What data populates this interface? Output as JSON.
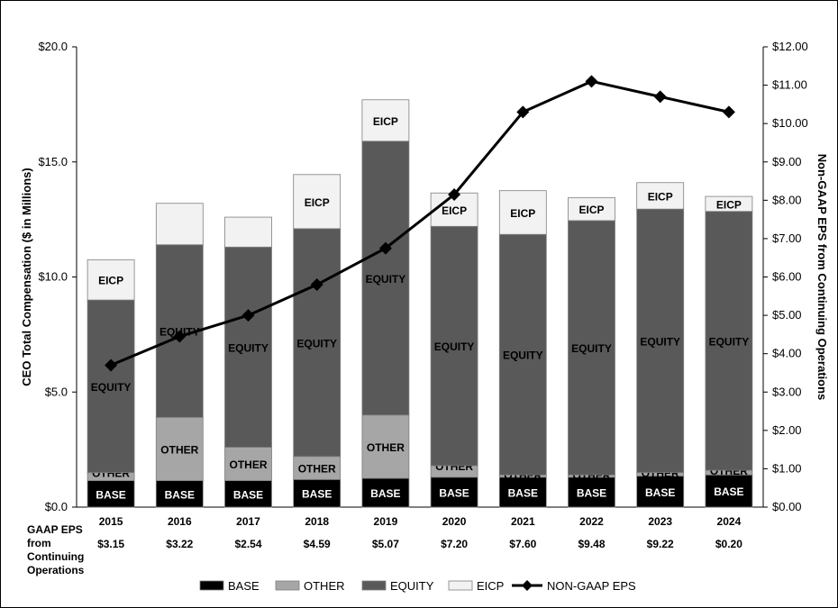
{
  "chart_data": {
    "type": "bar",
    "stacked": true,
    "categories": [
      "2015",
      "2016",
      "2017",
      "2018",
      "2019",
      "2020",
      "2021",
      "2022",
      "2023",
      "2024"
    ],
    "series": [
      {
        "name": "BASE",
        "color": "#000000",
        "values": [
          1.15,
          1.15,
          1.15,
          1.2,
          1.25,
          1.3,
          1.3,
          1.3,
          1.35,
          1.4
        ]
      },
      {
        "name": "OTHER",
        "color": "#a6a6a6",
        "values": [
          0.35,
          2.75,
          1.45,
          1.0,
          2.75,
          0.5,
          0.1,
          0.1,
          0.15,
          0.2
        ]
      },
      {
        "name": "EQUITY",
        "color": "#595959",
        "values": [
          7.5,
          7.5,
          8.7,
          9.9,
          11.9,
          10.4,
          10.45,
          11.05,
          11.45,
          11.25
        ]
      },
      {
        "name": "EICP",
        "color": "#f2f2f2",
        "values": [
          1.75,
          1.8,
          1.3,
          2.35,
          1.8,
          1.45,
          1.9,
          1.0,
          1.15,
          0.65
        ]
      }
    ],
    "line": {
      "name": "NON-GAAP EPS",
      "axis": "right",
      "values": [
        3.7,
        4.45,
        5.0,
        5.8,
        6.75,
        8.15,
        10.3,
        11.1,
        10.7,
        10.3
      ]
    },
    "segment_labels": {
      "BASE": [
        "BASE",
        "BASE",
        "BASE",
        "BASE",
        "BASE",
        "BASE",
        "BASE",
        "BASE",
        "BASE",
        "BASE"
      ],
      "OTHER": [
        "OTHER",
        "OTHER",
        "OTHER",
        "OTHER",
        "OTHER",
        "OTHER",
        "OTHER",
        "OTHER",
        "OTHER",
        "OTHER"
      ],
      "EQUITY": [
        "EQUITY",
        "EQUITY",
        "EQUITY",
        "EQUITY",
        "EQUITY",
        "EQUITY",
        "EQUITY",
        "EQUITY",
        "EQUITY",
        "EQUITY"
      ],
      "EICP": [
        "EICP",
        "",
        "",
        "EICP",
        "EICP",
        "EICP",
        "EICP",
        "EICP",
        "EICP",
        "EICP"
      ]
    },
    "y_left": {
      "label": "CEO Total Compensation ($ in Millions)",
      "range": [
        0,
        20
      ],
      "ticks": [
        "$0.0",
        "$5.0",
        "$10.0",
        "$15.0",
        "$20.0"
      ],
      "tick_values": [
        0,
        5,
        10,
        15,
        20
      ]
    },
    "y_right": {
      "label": "Non-GAAP EPS from Continuing Operations",
      "range": [
        0,
        12
      ],
      "ticks": [
        "$0.00",
        "$1.00",
        "$2.00",
        "$3.00",
        "$4.00",
        "$5.00",
        "$6.00",
        "$7.00",
        "$8.00",
        "$9.00",
        "$10.00",
        "$11.00",
        "$12.00"
      ],
      "tick_values": [
        0,
        1,
        2,
        3,
        4,
        5,
        6,
        7,
        8,
        9,
        10,
        11,
        12
      ]
    },
    "gaap_eps": {
      "label_lines": [
        "GAAP EPS",
        "from",
        "Continuing",
        "Operations"
      ],
      "values": [
        "$3.15",
        "$3.22",
        "$2.54",
        "$4.59",
        "$5.07",
        "$7.20",
        "$7.60",
        "$9.48",
        "$9.22",
        "$0.20"
      ]
    },
    "legend": [
      "BASE",
      "OTHER",
      "EQUITY",
      "EICP",
      "NON-GAAP EPS"
    ],
    "legend_position": "bottom",
    "grid": false
  }
}
